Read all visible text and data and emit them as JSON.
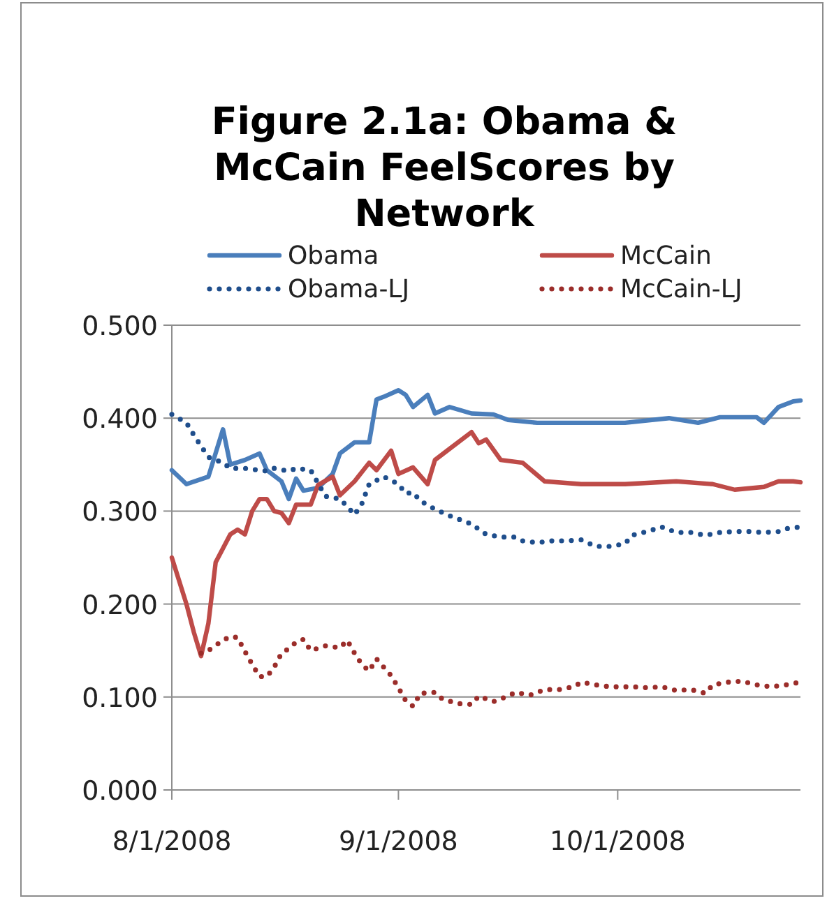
{
  "chart_data": {
    "type": "line",
    "title": "Figure 2.1a: Obama & McCain FeelScores by Network",
    "legend": "top",
    "grid": "y",
    "xlim": [
      "2008-08-01",
      "2008-10-26"
    ],
    "xticks": [
      {
        "value": "2008-08-01",
        "label": "8/1/2008"
      },
      {
        "value": "2008-09-01",
        "label": "9/1/2008"
      },
      {
        "value": "2008-10-01",
        "label": "10/1/2008"
      }
    ],
    "ylim": [
      0,
      0.5
    ],
    "yticks": [
      {
        "value": 0,
        "label": "0.000"
      },
      {
        "value": 0.1,
        "label": "0.100"
      },
      {
        "value": 0.2,
        "label": "0.200"
      },
      {
        "value": 0.3,
        "label": "0.300"
      },
      {
        "value": 0.4,
        "label": "0.400"
      },
      {
        "value": 0.5,
        "label": "0.500"
      }
    ],
    "series": [
      {
        "name": "Obama",
        "color": "#4a7ebb",
        "line_style": "solid",
        "x": [
          "2008-08-01",
          "2008-08-03",
          "2008-08-06",
          "2008-08-08",
          "2008-08-09",
          "2008-08-11",
          "2008-08-13",
          "2008-08-14",
          "2008-08-16",
          "2008-08-17",
          "2008-08-18",
          "2008-08-19",
          "2008-08-21",
          "2008-08-23",
          "2008-08-24",
          "2008-08-26",
          "2008-08-28",
          "2008-08-29",
          "2008-08-30",
          "2008-09-01",
          "2008-09-02",
          "2008-09-03",
          "2008-09-05",
          "2008-09-06",
          "2008-09-08",
          "2008-09-11",
          "2008-09-14",
          "2008-09-16",
          "2008-09-20",
          "2008-09-26",
          "2008-10-02",
          "2008-10-08",
          "2008-10-12",
          "2008-10-15",
          "2008-10-20",
          "2008-10-21",
          "2008-10-23",
          "2008-10-25",
          "2008-10-26"
        ],
        "values": [
          0.344,
          0.329,
          0.337,
          0.388,
          0.35,
          0.355,
          0.362,
          0.344,
          0.332,
          0.313,
          0.335,
          0.322,
          0.325,
          0.34,
          0.362,
          0.374,
          0.374,
          0.42,
          0.423,
          0.43,
          0.425,
          0.412,
          0.425,
          0.405,
          0.412,
          0.405,
          0.404,
          0.398,
          0.395,
          0.395,
          0.395,
          0.4,
          0.395,
          0.401,
          0.401,
          0.395,
          0.412,
          0.418,
          0.419
        ]
      },
      {
        "name": "McCain",
        "color": "#be4b48",
        "line_style": "solid",
        "x": [
          "2008-08-01",
          "2008-08-03",
          "2008-08-04",
          "2008-08-05",
          "2008-08-06",
          "2008-08-07",
          "2008-08-08",
          "2008-08-09",
          "2008-08-10",
          "2008-08-11",
          "2008-08-12",
          "2008-08-13",
          "2008-08-14",
          "2008-08-15",
          "2008-08-16",
          "2008-08-17",
          "2008-08-18",
          "2008-08-20",
          "2008-08-21",
          "2008-08-23",
          "2008-08-24",
          "2008-08-26",
          "2008-08-28",
          "2008-08-29",
          "2008-08-31",
          "2008-09-01",
          "2008-09-03",
          "2008-09-05",
          "2008-09-06",
          "2008-09-08",
          "2008-09-11",
          "2008-09-12",
          "2008-09-13",
          "2008-09-15",
          "2008-09-18",
          "2008-09-21",
          "2008-09-26",
          "2008-10-02",
          "2008-10-09",
          "2008-10-14",
          "2008-10-17",
          "2008-10-21",
          "2008-10-23",
          "2008-10-25",
          "2008-10-26"
        ],
        "values": [
          0.25,
          0.2,
          0.17,
          0.144,
          0.179,
          0.245,
          0.26,
          0.275,
          0.28,
          0.275,
          0.3,
          0.313,
          0.313,
          0.3,
          0.298,
          0.287,
          0.307,
          0.307,
          0.328,
          0.337,
          0.317,
          0.332,
          0.352,
          0.344,
          0.365,
          0.34,
          0.347,
          0.329,
          0.355,
          0.367,
          0.385,
          0.373,
          0.377,
          0.355,
          0.352,
          0.332,
          0.329,
          0.329,
          0.332,
          0.329,
          0.323,
          0.326,
          0.332,
          0.332,
          0.331
        ]
      },
      {
        "name": "Obama-LJ",
        "color": "#1f4e8c",
        "line_style": "dotted",
        "x": [
          "2008-08-01",
          "2008-08-03",
          "2008-08-04",
          "2008-08-05",
          "2008-08-06",
          "2008-08-08",
          "2008-08-09",
          "2008-08-11",
          "2008-08-13",
          "2008-08-14",
          "2008-08-15",
          "2008-08-17",
          "2008-08-18",
          "2008-08-20",
          "2008-08-22",
          "2008-08-24",
          "2008-08-25",
          "2008-08-26",
          "2008-08-27",
          "2008-08-28",
          "2008-08-30",
          "2008-09-01",
          "2008-09-02",
          "2008-09-03",
          "2008-09-04",
          "2008-09-06",
          "2008-09-08",
          "2008-09-10",
          "2008-09-11",
          "2008-09-13",
          "2008-09-15",
          "2008-09-17",
          "2008-09-18",
          "2008-09-20",
          "2008-09-22",
          "2008-09-24",
          "2008-09-26",
          "2008-09-28",
          "2008-09-30",
          "2008-10-02",
          "2008-10-03",
          "2008-10-05",
          "2008-10-07",
          "2008-10-09",
          "2008-10-11",
          "2008-10-13",
          "2008-10-15",
          "2008-10-17",
          "2008-10-19",
          "2008-10-21",
          "2008-10-23",
          "2008-10-24",
          "2008-10-26"
        ],
        "values": [
          0.404,
          0.395,
          0.382,
          0.37,
          0.358,
          0.352,
          0.346,
          0.346,
          0.344,
          0.343,
          0.346,
          0.343,
          0.346,
          0.344,
          0.316,
          0.313,
          0.305,
          0.296,
          0.308,
          0.329,
          0.337,
          0.329,
          0.319,
          0.32,
          0.311,
          0.302,
          0.295,
          0.289,
          0.286,
          0.275,
          0.272,
          0.272,
          0.268,
          0.266,
          0.268,
          0.268,
          0.269,
          0.262,
          0.262,
          0.265,
          0.274,
          0.278,
          0.283,
          0.277,
          0.277,
          0.274,
          0.277,
          0.278,
          0.278,
          0.277,
          0.278,
          0.281,
          0.283
        ]
      },
      {
        "name": "McCain-LJ",
        "color": "#9b2d2a",
        "line_style": "dotted",
        "x": [
          "2008-08-05",
          "2008-08-06",
          "2008-08-08",
          "2008-08-09",
          "2008-08-10",
          "2008-08-11",
          "2008-08-12",
          "2008-08-13",
          "2008-08-14",
          "2008-08-15",
          "2008-08-16",
          "2008-08-17",
          "2008-08-18",
          "2008-08-19",
          "2008-08-20",
          "2008-08-22",
          "2008-08-24",
          "2008-08-25",
          "2008-08-26",
          "2008-08-27",
          "2008-08-28",
          "2008-08-29",
          "2008-08-30",
          "2008-08-31",
          "2008-09-01",
          "2008-09-02",
          "2008-09-03",
          "2008-09-04",
          "2008-09-06",
          "2008-09-07",
          "2008-09-09",
          "2008-09-11",
          "2008-09-12",
          "2008-09-14",
          "2008-09-16",
          "2008-09-17",
          "2008-09-19",
          "2008-09-21",
          "2008-09-23",
          "2008-09-25",
          "2008-09-26",
          "2008-09-28",
          "2008-09-30",
          "2008-10-02",
          "2008-10-03",
          "2008-10-05",
          "2008-10-07",
          "2008-10-09",
          "2008-10-11",
          "2008-10-13",
          "2008-10-14",
          "2008-10-16",
          "2008-10-18",
          "2008-10-20",
          "2008-10-22",
          "2008-10-24",
          "2008-10-26"
        ],
        "values": [
          0.147,
          0.15,
          0.161,
          0.165,
          0.164,
          0.149,
          0.135,
          0.122,
          0.122,
          0.132,
          0.147,
          0.152,
          0.159,
          0.162,
          0.15,
          0.155,
          0.153,
          0.161,
          0.147,
          0.135,
          0.128,
          0.141,
          0.132,
          0.123,
          0.11,
          0.096,
          0.09,
          0.104,
          0.105,
          0.098,
          0.093,
          0.092,
          0.101,
          0.095,
          0.101,
          0.105,
          0.102,
          0.108,
          0.108,
          0.111,
          0.116,
          0.113,
          0.111,
          0.111,
          0.111,
          0.11,
          0.111,
          0.107,
          0.108,
          0.104,
          0.113,
          0.116,
          0.117,
          0.113,
          0.111,
          0.113,
          0.116
        ]
      }
    ]
  }
}
